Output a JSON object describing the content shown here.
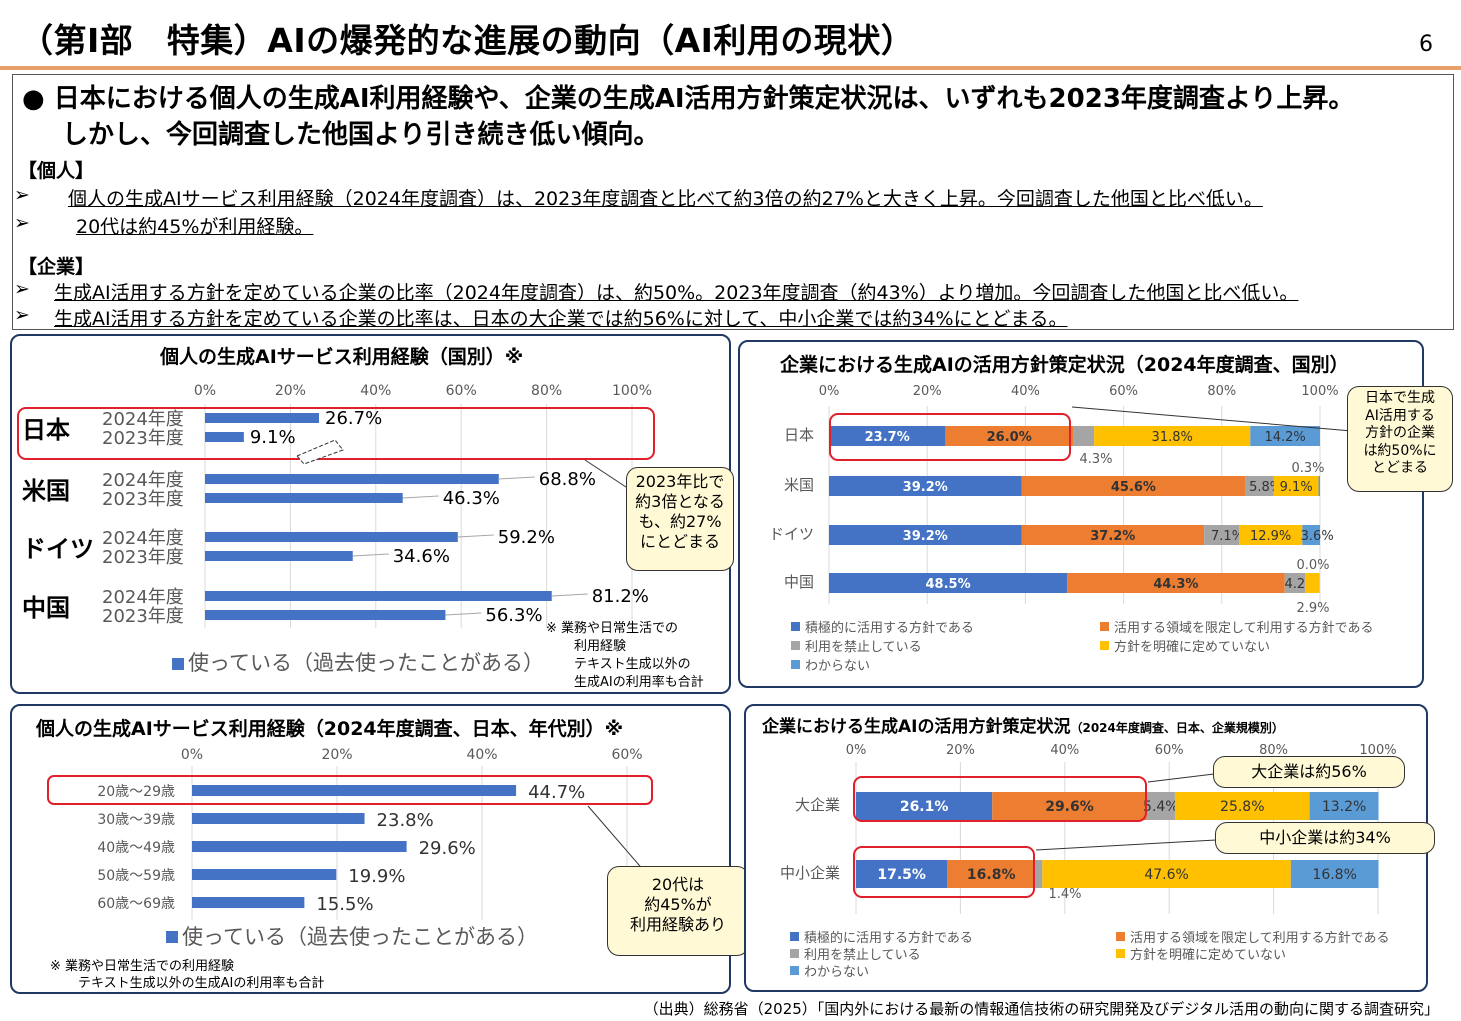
{
  "header": {
    "title": "（第Ⅰ部　特集）AIの爆発的な進展の動向（AI利用の現状）",
    "page_number": "6"
  },
  "summary": {
    "main_line1": "●  日本における個人の生成AI利用経験や、企業の生成AI活用方針策定状況は、いずれも2023年度調査より上昇。",
    "main_line2": "しかし、今回調査した他国より引き続き低い傾向。",
    "individual_label": "【個人】",
    "individual_items": [
      {
        "marker": "➢",
        "text": "個人の生成AIサービス利用経験（2024年度調査）は、2023年度調査と比べて約3倍の約27%と大きく上昇。今回調査した他国と比べ低い。"
      },
      {
        "marker": "➢",
        "text": "20代は約45%が利用経験。"
      }
    ],
    "company_label": "【企業】",
    "company_items": [
      {
        "marker": "➢",
        "text": "生成AI活用する方針を定めている企業の比率（2024年度調査）は、約50%。2023年度調査（約43%）より増加。今回調査した他国と比べ低い。"
      },
      {
        "marker": "➢",
        "text": "生成AI活用する方針を定めている企業の比率は、日本の大企業では約56%に対して、中小企業では約34%にとどまる。"
      }
    ]
  },
  "footer": {
    "source": "（出典）総務省（2025）「国内外における最新の情報通信技術の研究開発及びデジタル活用の動向に関する調査研究」"
  },
  "chart_data": [
    {
      "id": "country-usage",
      "type": "bar",
      "orientation": "horizontal",
      "title": "個人の生成AIサービス利用経験（国別）※",
      "x_ticks": [
        "0%",
        "20%",
        "40%",
        "60%",
        "80%",
        "100%"
      ],
      "xlim": [
        0,
        100
      ],
      "groups": [
        {
          "country": "日本",
          "bars": [
            {
              "year": "2024年度",
              "value": 26.7,
              "label": "26.7%"
            },
            {
              "year": "2023年度",
              "value": 9.1,
              "label": "9.1%"
            }
          ]
        },
        {
          "country": "米国",
          "bars": [
            {
              "year": "2024年度",
              "value": 68.8,
              "label": "68.8%"
            },
            {
              "year": "2023年度",
              "value": 46.3,
              "label": "46.3%"
            }
          ]
        },
        {
          "country": "ドイツ",
          "bars": [
            {
              "year": "2024年度",
              "value": 59.2,
              "label": "59.2%"
            },
            {
              "year": "2023年度",
              "value": 34.6,
              "label": "34.6%"
            }
          ]
        },
        {
          "country": "中国",
          "bars": [
            {
              "year": "2024年度",
              "value": 81.2,
              "label": "81.2%"
            },
            {
              "year": "2023年度",
              "value": 56.3,
              "label": "56.3%"
            }
          ]
        }
      ],
      "legend": "使っている（過去使ったことがある）",
      "note_lines": [
        "※ 業務や日常生活での",
        "利用経験",
        "テキスト生成以外の",
        "生成AIの利用率も合計"
      ],
      "callout": [
        "2023年比で",
        "約3倍となる",
        "も、約27%",
        "にとどまる"
      ],
      "color": "#4472c4"
    },
    {
      "id": "company-policy-country",
      "type": "bar",
      "stacked": true,
      "orientation": "horizontal",
      "title": "企業における生成AIの活用方針策定状況（2024年度調査、国別）",
      "x_ticks": [
        "0%",
        "20%",
        "40%",
        "60%",
        "80%",
        "100%"
      ],
      "categories": [
        "日本",
        "米国",
        "ドイツ",
        "中国"
      ],
      "series": [
        {
          "name": "積極的に活用する方針である",
          "color": "#4472c4",
          "values": [
            23.7,
            39.2,
            39.2,
            48.5
          ]
        },
        {
          "name": "活用する領域を限定して利用する方針である",
          "color": "#ed7d31",
          "values": [
            26.0,
            45.6,
            37.2,
            44.3
          ]
        },
        {
          "name": "利用を禁止している",
          "color": "#a5a5a5",
          "values": [
            4.3,
            5.8,
            7.1,
            4.2
          ]
        },
        {
          "name": "方針を明確に定めていない",
          "color": "#ffc000",
          "values": [
            31.8,
            9.1,
            12.9,
            2.9
          ]
        },
        {
          "name": "わからない",
          "color": "#5b9bd5",
          "values": [
            14.2,
            0.3,
            3.6,
            0.0
          ]
        }
      ],
      "segment_labels": [
        [
          "23.7%",
          "26.0%",
          "",
          "31.8%",
          "14.2%"
        ],
        [
          "39.2%",
          "45.6%",
          "5.8%",
          "9.1%",
          ""
        ],
        [
          "39.2%",
          "37.2%",
          "7.1%",
          "12.9%",
          "3.6%"
        ],
        [
          "48.5%",
          "44.3%",
          "4.2%",
          "",
          ""
        ]
      ],
      "outside_labels": [
        "4.3%",
        "0.3%",
        "0.0%",
        "2.9%"
      ],
      "callout": [
        "日本で生成",
        "AI活用する",
        "方針の企業",
        "は約50%に",
        "とどまる"
      ]
    },
    {
      "id": "age-usage",
      "type": "bar",
      "orientation": "horizontal",
      "title": "個人の生成AIサービス利用経験（2024年度調査、日本、年代別）※",
      "x_ticks": [
        "0%",
        "20%",
        "40%",
        "60%"
      ],
      "xlim": [
        0,
        60
      ],
      "categories": [
        "20歳～29歳",
        "30歳～39歳",
        "40歳～49歳",
        "50歳～59歳",
        "60歳～69歳"
      ],
      "values": [
        44.7,
        23.8,
        29.6,
        19.9,
        15.5
      ],
      "labels": [
        "44.7%",
        "23.8%",
        "29.6%",
        "19.9%",
        "15.5%"
      ],
      "legend": "使っている（過去使ったことがある）",
      "note_lines": [
        "※ 業務や日常生活での利用経験",
        "テキスト生成以外の生成AIの利用率も合計"
      ],
      "callout": [
        "20代は",
        "約45%が",
        "利用経験あり"
      ],
      "color": "#4472c4"
    },
    {
      "id": "company-policy-size",
      "type": "bar",
      "stacked": true,
      "orientation": "horizontal",
      "title": "企業における生成AIの活用方針策定状況",
      "title_suffix": "（2024年度調査、日本、企業規模別）",
      "x_ticks": [
        "0%",
        "20%",
        "40%",
        "60%",
        "80%",
        "100%"
      ],
      "categories": [
        "大企業",
        "中小企業"
      ],
      "series": [
        {
          "name": "積極的に活用する方針である",
          "color": "#4472c4",
          "values": [
            26.1,
            17.5
          ]
        },
        {
          "name": "活用する領域を限定して利用する方針である",
          "color": "#ed7d31",
          "values": [
            29.6,
            16.8
          ]
        },
        {
          "name": "利用を禁止している",
          "color": "#a5a5a5",
          "values": [
            5.4,
            1.4
          ]
        },
        {
          "name": "方針を明確に定めていない",
          "color": "#ffc000",
          "values": [
            25.8,
            47.6
          ]
        },
        {
          "name": "わからない",
          "color": "#5b9bd5",
          "values": [
            13.2,
            16.8
          ]
        }
      ],
      "segment_labels": [
        [
          "26.1%",
          "29.6%",
          "5.4%",
          "25.8%",
          "13.2%"
        ],
        [
          "17.5%",
          "16.8%",
          "",
          "47.6%",
          "16.8%"
        ]
      ],
      "outside_labels": [
        "1.4%"
      ],
      "callouts": [
        "大企業は約56%",
        "中小企業は約34%"
      ]
    }
  ]
}
